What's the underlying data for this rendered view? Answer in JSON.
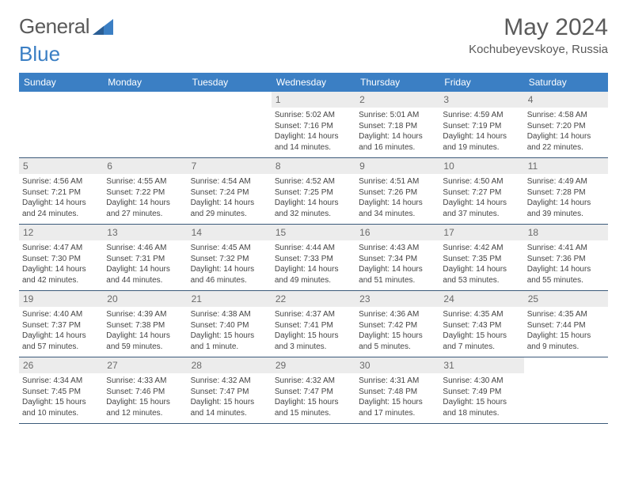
{
  "brand": {
    "part1": "General",
    "part2": "Blue"
  },
  "title": "May 2024",
  "location": "Kochubeyevskoye, Russia",
  "day_names": [
    "Sunday",
    "Monday",
    "Tuesday",
    "Wednesday",
    "Thursday",
    "Friday",
    "Saturday"
  ],
  "colors": {
    "header_bg": "#3b7fc4",
    "header_text": "#ffffff",
    "daynum_bg": "#ececec",
    "text": "#444444",
    "rule": "#3b5a7a"
  },
  "weeks": [
    [
      {
        "n": "",
        "sr": "",
        "ss": "",
        "dl": ""
      },
      {
        "n": "",
        "sr": "",
        "ss": "",
        "dl": ""
      },
      {
        "n": "",
        "sr": "",
        "ss": "",
        "dl": ""
      },
      {
        "n": "1",
        "sr": "Sunrise: 5:02 AM",
        "ss": "Sunset: 7:16 PM",
        "dl": "Daylight: 14 hours and 14 minutes."
      },
      {
        "n": "2",
        "sr": "Sunrise: 5:01 AM",
        "ss": "Sunset: 7:18 PM",
        "dl": "Daylight: 14 hours and 16 minutes."
      },
      {
        "n": "3",
        "sr": "Sunrise: 4:59 AM",
        "ss": "Sunset: 7:19 PM",
        "dl": "Daylight: 14 hours and 19 minutes."
      },
      {
        "n": "4",
        "sr": "Sunrise: 4:58 AM",
        "ss": "Sunset: 7:20 PM",
        "dl": "Daylight: 14 hours and 22 minutes."
      }
    ],
    [
      {
        "n": "5",
        "sr": "Sunrise: 4:56 AM",
        "ss": "Sunset: 7:21 PM",
        "dl": "Daylight: 14 hours and 24 minutes."
      },
      {
        "n": "6",
        "sr": "Sunrise: 4:55 AM",
        "ss": "Sunset: 7:22 PM",
        "dl": "Daylight: 14 hours and 27 minutes."
      },
      {
        "n": "7",
        "sr": "Sunrise: 4:54 AM",
        "ss": "Sunset: 7:24 PM",
        "dl": "Daylight: 14 hours and 29 minutes."
      },
      {
        "n": "8",
        "sr": "Sunrise: 4:52 AM",
        "ss": "Sunset: 7:25 PM",
        "dl": "Daylight: 14 hours and 32 minutes."
      },
      {
        "n": "9",
        "sr": "Sunrise: 4:51 AM",
        "ss": "Sunset: 7:26 PM",
        "dl": "Daylight: 14 hours and 34 minutes."
      },
      {
        "n": "10",
        "sr": "Sunrise: 4:50 AM",
        "ss": "Sunset: 7:27 PM",
        "dl": "Daylight: 14 hours and 37 minutes."
      },
      {
        "n": "11",
        "sr": "Sunrise: 4:49 AM",
        "ss": "Sunset: 7:28 PM",
        "dl": "Daylight: 14 hours and 39 minutes."
      }
    ],
    [
      {
        "n": "12",
        "sr": "Sunrise: 4:47 AM",
        "ss": "Sunset: 7:30 PM",
        "dl": "Daylight: 14 hours and 42 minutes."
      },
      {
        "n": "13",
        "sr": "Sunrise: 4:46 AM",
        "ss": "Sunset: 7:31 PM",
        "dl": "Daylight: 14 hours and 44 minutes."
      },
      {
        "n": "14",
        "sr": "Sunrise: 4:45 AM",
        "ss": "Sunset: 7:32 PM",
        "dl": "Daylight: 14 hours and 46 minutes."
      },
      {
        "n": "15",
        "sr": "Sunrise: 4:44 AM",
        "ss": "Sunset: 7:33 PM",
        "dl": "Daylight: 14 hours and 49 minutes."
      },
      {
        "n": "16",
        "sr": "Sunrise: 4:43 AM",
        "ss": "Sunset: 7:34 PM",
        "dl": "Daylight: 14 hours and 51 minutes."
      },
      {
        "n": "17",
        "sr": "Sunrise: 4:42 AM",
        "ss": "Sunset: 7:35 PM",
        "dl": "Daylight: 14 hours and 53 minutes."
      },
      {
        "n": "18",
        "sr": "Sunrise: 4:41 AM",
        "ss": "Sunset: 7:36 PM",
        "dl": "Daylight: 14 hours and 55 minutes."
      }
    ],
    [
      {
        "n": "19",
        "sr": "Sunrise: 4:40 AM",
        "ss": "Sunset: 7:37 PM",
        "dl": "Daylight: 14 hours and 57 minutes."
      },
      {
        "n": "20",
        "sr": "Sunrise: 4:39 AM",
        "ss": "Sunset: 7:38 PM",
        "dl": "Daylight: 14 hours and 59 minutes."
      },
      {
        "n": "21",
        "sr": "Sunrise: 4:38 AM",
        "ss": "Sunset: 7:40 PM",
        "dl": "Daylight: 15 hours and 1 minute."
      },
      {
        "n": "22",
        "sr": "Sunrise: 4:37 AM",
        "ss": "Sunset: 7:41 PM",
        "dl": "Daylight: 15 hours and 3 minutes."
      },
      {
        "n": "23",
        "sr": "Sunrise: 4:36 AM",
        "ss": "Sunset: 7:42 PM",
        "dl": "Daylight: 15 hours and 5 minutes."
      },
      {
        "n": "24",
        "sr": "Sunrise: 4:35 AM",
        "ss": "Sunset: 7:43 PM",
        "dl": "Daylight: 15 hours and 7 minutes."
      },
      {
        "n": "25",
        "sr": "Sunrise: 4:35 AM",
        "ss": "Sunset: 7:44 PM",
        "dl": "Daylight: 15 hours and 9 minutes."
      }
    ],
    [
      {
        "n": "26",
        "sr": "Sunrise: 4:34 AM",
        "ss": "Sunset: 7:45 PM",
        "dl": "Daylight: 15 hours and 10 minutes."
      },
      {
        "n": "27",
        "sr": "Sunrise: 4:33 AM",
        "ss": "Sunset: 7:46 PM",
        "dl": "Daylight: 15 hours and 12 minutes."
      },
      {
        "n": "28",
        "sr": "Sunrise: 4:32 AM",
        "ss": "Sunset: 7:47 PM",
        "dl": "Daylight: 15 hours and 14 minutes."
      },
      {
        "n": "29",
        "sr": "Sunrise: 4:32 AM",
        "ss": "Sunset: 7:47 PM",
        "dl": "Daylight: 15 hours and 15 minutes."
      },
      {
        "n": "30",
        "sr": "Sunrise: 4:31 AM",
        "ss": "Sunset: 7:48 PM",
        "dl": "Daylight: 15 hours and 17 minutes."
      },
      {
        "n": "31",
        "sr": "Sunrise: 4:30 AM",
        "ss": "Sunset: 7:49 PM",
        "dl": "Daylight: 15 hours and 18 minutes."
      },
      {
        "n": "",
        "sr": "",
        "ss": "",
        "dl": ""
      }
    ]
  ]
}
